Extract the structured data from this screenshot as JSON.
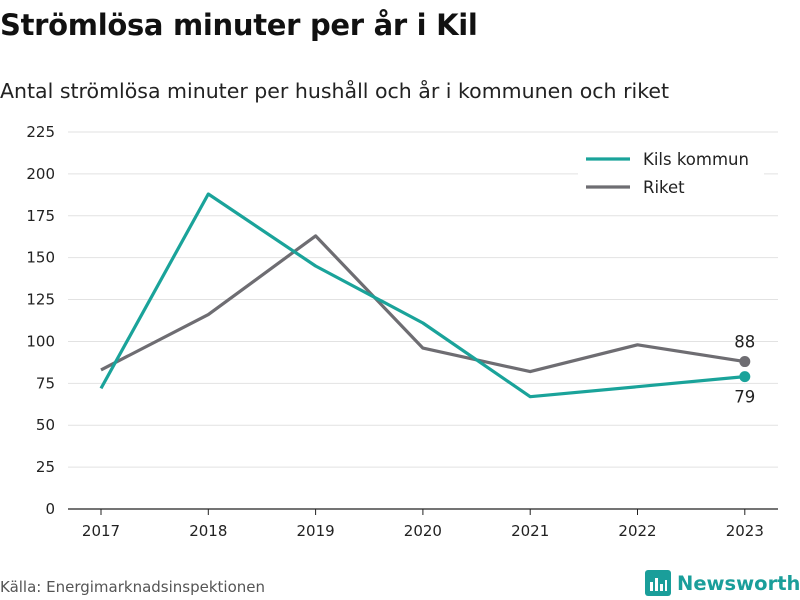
{
  "chart_data": {
    "type": "line",
    "title": "Strömlösa minuter per år i Kil",
    "subtitle": "Antal strömlösa minuter per hushåll och år i kommunen och riket",
    "categories": [
      "2017",
      "2018",
      "2019",
      "2020",
      "2021",
      "2022",
      "2023"
    ],
    "series": [
      {
        "name": "Kils kommun",
        "color": "#1aa39a",
        "values": [
          72,
          188,
          145,
          111,
          67,
          73,
          79
        ]
      },
      {
        "name": "Riket",
        "color": "#6e6d72",
        "values": [
          83,
          116,
          163,
          96,
          82,
          98,
          88
        ]
      }
    ],
    "ylim": [
      0,
      225
    ],
    "yticks": [
      "0",
      "25",
      "50",
      "75",
      "100",
      "125",
      "150",
      "175",
      "200",
      "225"
    ],
    "grid": true,
    "legend_position": "top-right",
    "end_labels": {
      "Kils kommun": "79",
      "Riket": "88"
    }
  },
  "footer": {
    "source": "Källa: Energimarknadsinspektionen",
    "brand": "Newsworthy",
    "brand_icon": "bar-chart-icon",
    "brand_color": "#1a9e9a"
  }
}
